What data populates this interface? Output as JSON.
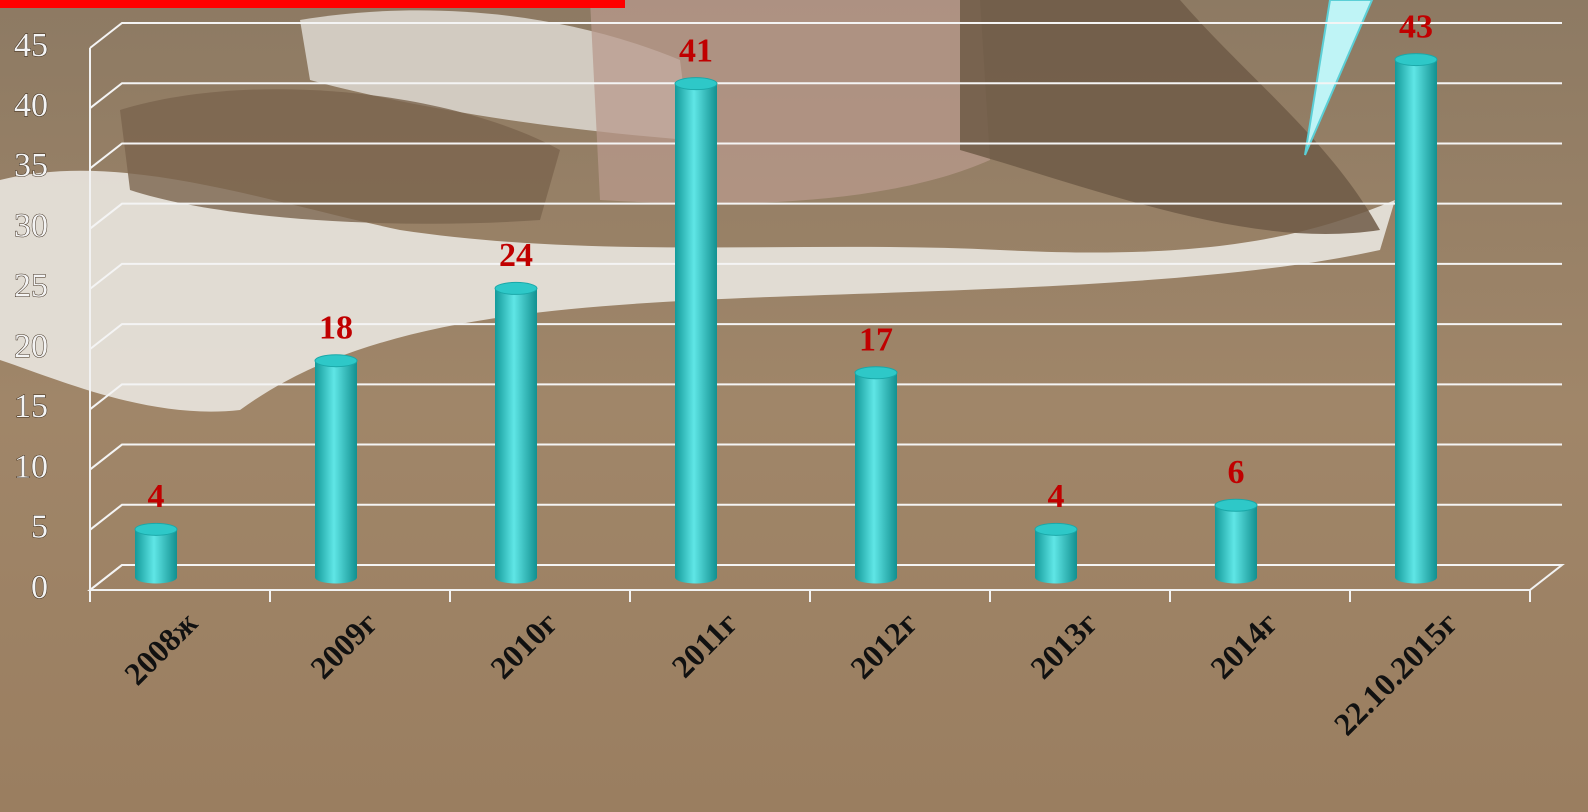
{
  "chart_data": {
    "type": "bar",
    "categories": [
      "2008ж",
      "2009г",
      "2010г",
      "2011г",
      "2012г",
      "2013г",
      "2014г",
      "22.10.2015г"
    ],
    "values": [
      4,
      18,
      24,
      41,
      17,
      4,
      6,
      43
    ],
    "color": "#2ec8c8",
    "ylim": [
      0,
      45
    ],
    "yticks": [
      0,
      5,
      10,
      15,
      20,
      25,
      30,
      35,
      40,
      45
    ],
    "grid": true
  }
}
